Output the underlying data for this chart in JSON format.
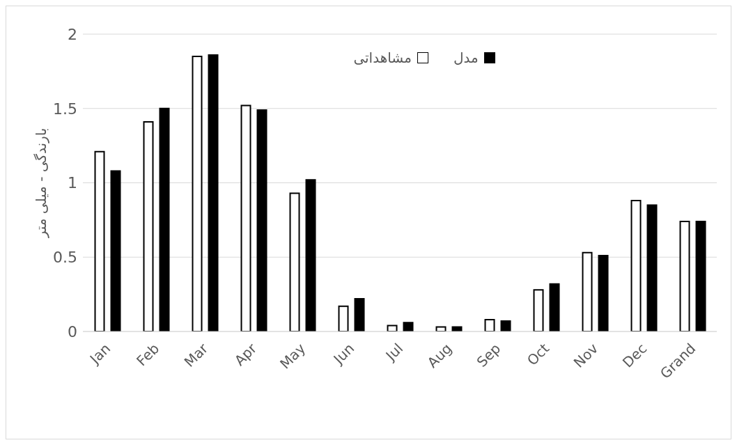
{
  "chart_data": {
    "type": "bar",
    "ylabel": "بارندگی - میلی متر",
    "categories": [
      "Jan",
      "Feb",
      "Mar",
      "Apr",
      "May",
      "Jun",
      "Jul",
      "Aug",
      "Sep",
      "Oct",
      "Nov",
      "Dec",
      "Grand"
    ],
    "series": [
      {
        "name": "مشاهداتی",
        "color": "#ffffff",
        "values": [
          1.21,
          1.41,
          1.85,
          1.52,
          0.93,
          0.17,
          0.04,
          0.03,
          0.08,
          0.28,
          0.53,
          0.88,
          0.74
        ]
      },
      {
        "name": "مدل",
        "color": "#000000",
        "values": [
          1.08,
          1.5,
          1.86,
          1.49,
          1.02,
          0.22,
          0.06,
          0.03,
          0.07,
          0.32,
          0.51,
          0.85,
          0.74
        ]
      }
    ],
    "ylim": [
      0,
      2
    ],
    "yticks": [
      0,
      0.5,
      1,
      1.5,
      2
    ],
    "grid": "y",
    "legend": "top"
  }
}
